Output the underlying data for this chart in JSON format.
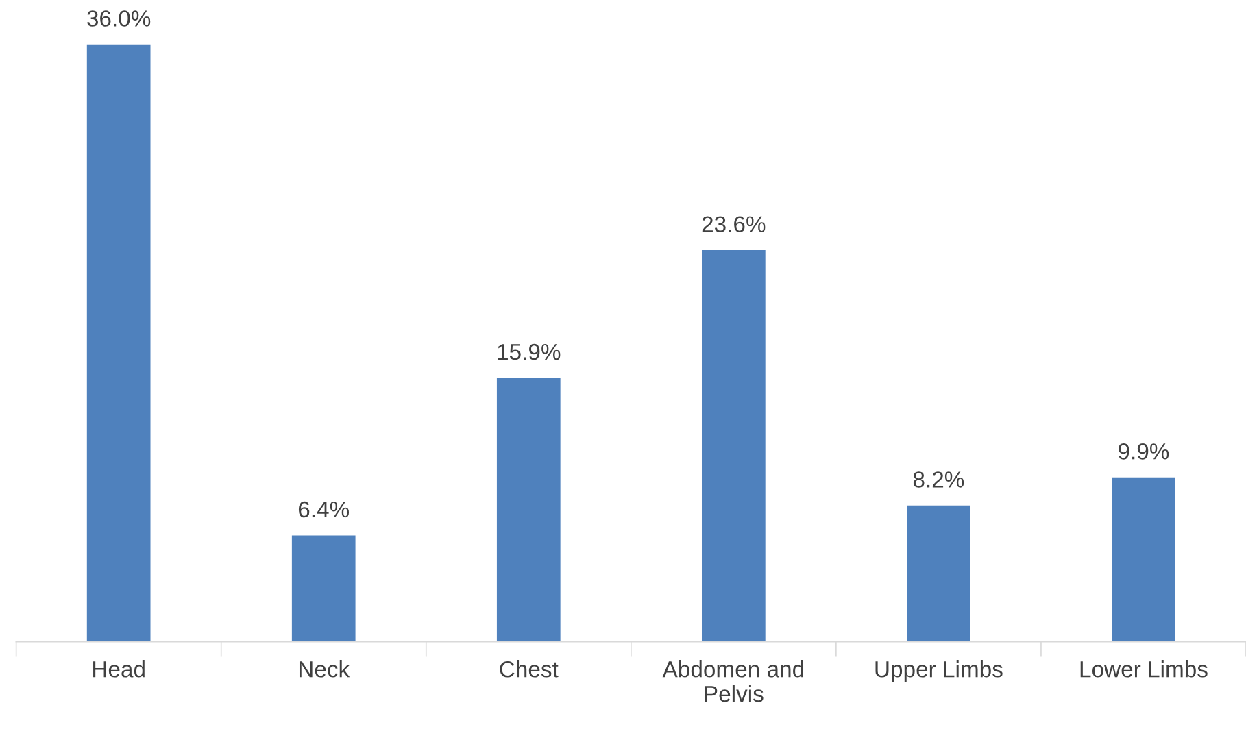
{
  "chart_data": {
    "type": "bar",
    "categories": [
      "Head",
      "Neck",
      "Chest",
      "Abdomen and Pelvis",
      "Upper Limbs",
      "Lower Limbs"
    ],
    "values": [
      36.0,
      6.4,
      15.9,
      23.6,
      8.2,
      9.9
    ],
    "value_labels": [
      "36.0%",
      "6.4%",
      "15.9%",
      "23.6%",
      "8.2%",
      "9.9%"
    ],
    "color": "#4f81bd",
    "grid": false,
    "legend": false
  }
}
